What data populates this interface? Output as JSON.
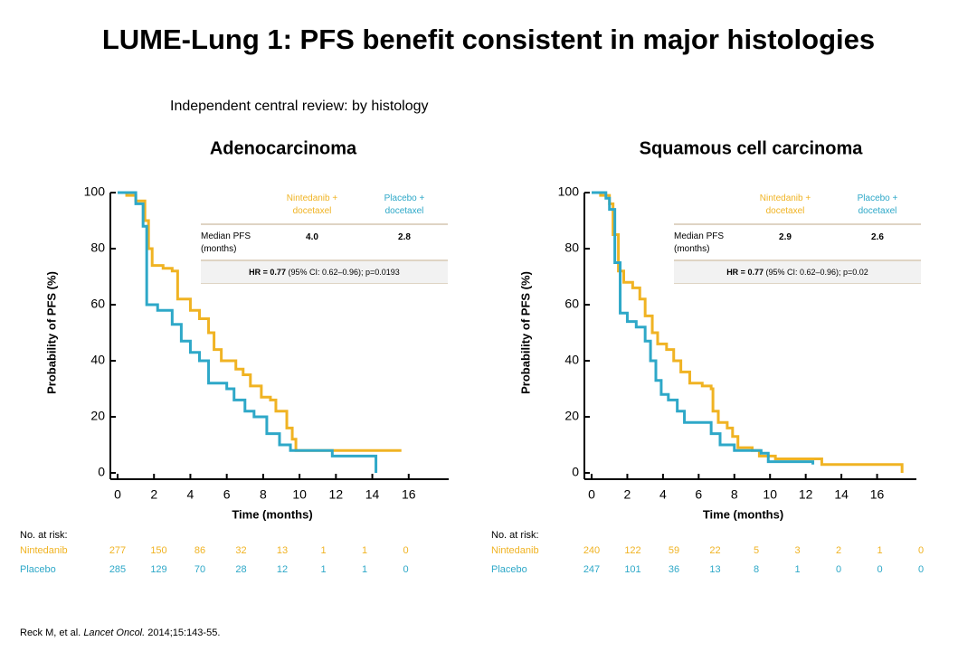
{
  "title": "LUME-Lung 1: PFS benefit consistent in major histologies",
  "subtitle": "Independent central review: by histology",
  "reference": {
    "authors": "Reck M, et al.",
    "journal": "Lancet Oncol.",
    "rest": "2014;15:143-55."
  },
  "chart_data": [
    {
      "type": "line",
      "step": true,
      "title": "Adenocarcinoma",
      "xlabel": "Time (months)",
      "ylabel": "Probability of PFS (%)",
      "xlim": [
        0,
        18
      ],
      "ylim": [
        0,
        100
      ],
      "xticks": [
        0,
        2,
        4,
        6,
        8,
        10,
        12,
        14,
        16
      ],
      "yticks": [
        0,
        20,
        40,
        60,
        80,
        100
      ],
      "series": [
        {
          "name": "Nintedanib",
          "color": "#f0b323",
          "x": [
            0,
            0.5,
            1,
            1.5,
            1.7,
            1.9,
            2.5,
            3,
            3.3,
            4,
            4.5,
            5,
            5.3,
            5.7,
            6.5,
            6.9,
            7.3,
            7.9,
            8.4,
            8.7,
            9.3,
            9.6,
            9.8,
            15.6
          ],
          "values": [
            100,
            99,
            97,
            90,
            80,
            74,
            73,
            72,
            62,
            58,
            55,
            50,
            44,
            40,
            37,
            35,
            31,
            27,
            26,
            22,
            16,
            12,
            8,
            8
          ],
          "at_risk": [
            277,
            150,
            86,
            32,
            13,
            1,
            1,
            0
          ]
        },
        {
          "name": "Placebo",
          "color": "#2ea8c8",
          "x": [
            0,
            1,
            1.4,
            1.6,
            2.2,
            3,
            3.5,
            4,
            4.5,
            5,
            6,
            6.4,
            7,
            7.5,
            8.2,
            8.9,
            9.5,
            11.8,
            14.2,
            14.2
          ],
          "values": [
            100,
            96,
            88,
            60,
            58,
            53,
            47,
            43,
            40,
            32,
            30,
            26,
            22,
            20,
            14,
            10,
            8,
            6,
            3,
            0
          ],
          "at_risk": [
            285,
            129,
            70,
            28,
            12,
            1,
            1,
            0
          ]
        }
      ],
      "table": {
        "columns": [
          "Nintedanib + docetaxel",
          "Placebo + docetaxel"
        ],
        "row_label": "Median PFS (months)",
        "row_values": [
          "4.0",
          "2.8"
        ],
        "hr": "HR = 0.77",
        "hr_detail": "(95% CI: 0.62–0.96); p=0.0193"
      },
      "at_risk_label": "No. at risk:"
    },
    {
      "type": "line",
      "step": true,
      "title": "Squamous cell carcinoma",
      "xlabel": "Time (months)",
      "ylabel": "Probability of PFS (%)",
      "xlim": [
        0,
        18
      ],
      "ylim": [
        0,
        100
      ],
      "xticks": [
        0,
        2,
        4,
        6,
        8,
        10,
        12,
        14,
        16
      ],
      "yticks": [
        0,
        20,
        40,
        60,
        80,
        100
      ],
      "series": [
        {
          "name": "Nintedanib",
          "color": "#f0b323",
          "x": [
            0,
            0.5,
            1,
            1.2,
            1.5,
            1.8,
            2.3,
            2.7,
            3,
            3.4,
            3.7,
            4.2,
            4.6,
            5,
            5.5,
            6.2,
            6.7,
            6.8,
            7.1,
            7.6,
            7.9,
            8.2,
            9,
            9.4,
            10.3,
            12.9,
            17.4,
            17.4
          ],
          "values": [
            100,
            99,
            96,
            85,
            72,
            68,
            66,
            62,
            56,
            50,
            46,
            44,
            40,
            36,
            32,
            31,
            30,
            22,
            18,
            16,
            13,
            9,
            8,
            6,
            5,
            3,
            3,
            0
          ],
          "at_risk": [
            240,
            122,
            59,
            22,
            5,
            3,
            2,
            1,
            0
          ]
        },
        {
          "name": "Placebo",
          "color": "#2ea8c8",
          "x": [
            0,
            0.8,
            1,
            1.3,
            1.6,
            2,
            2.5,
            3,
            3.3,
            3.6,
            3.9,
            4.3,
            4.8,
            5.2,
            6.3,
            6.7,
            7.2,
            8,
            9.5,
            9.9,
            12.4
          ],
          "values": [
            100,
            98,
            94,
            75,
            57,
            54,
            52,
            47,
            40,
            33,
            28,
            26,
            22,
            18,
            18,
            14,
            10,
            8,
            7,
            4,
            3
          ],
          "at_risk": [
            247,
            101,
            36,
            13,
            8,
            1,
            0,
            0,
            0
          ]
        }
      ],
      "table": {
        "columns": [
          "Nintedanib + docetaxel",
          "Placebo + docetaxel"
        ],
        "row_label": "Median PFS (months)",
        "row_values": [
          "2.9",
          "2.6"
        ],
        "hr": "HR = 0.77",
        "hr_detail": "(95% CI: 0.62–0.96); p=0.02"
      },
      "at_risk_label": "No. at risk:"
    }
  ]
}
